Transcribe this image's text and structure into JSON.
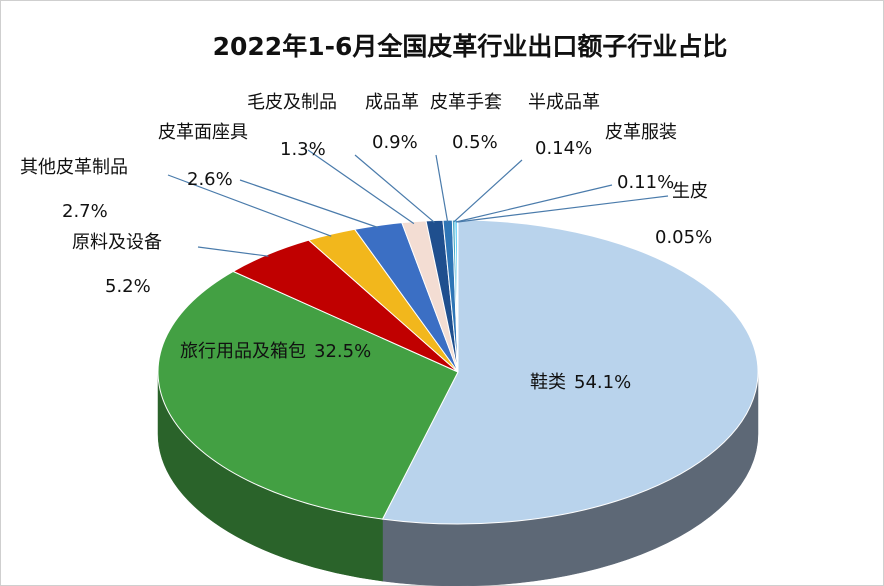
{
  "chart_data": {
    "type": "pie",
    "title": "2022年1-6月全国皮革行业出口额子行业占比",
    "categories": [
      "鞋类",
      "旅行用品及箱包",
      "原料及设备",
      "其他皮革制品",
      "皮革面座具",
      "毛皮及制品",
      "成品革",
      "皮革手套",
      "半成品革",
      "皮革服装",
      "生皮"
    ],
    "values": [
      54.1,
      32.5,
      5.2,
      2.7,
      2.6,
      1.3,
      0.9,
      0.5,
      0.14,
      0.11,
      0.05
    ],
    "value_labels": [
      "54.1%",
      "32.5%",
      "5.2%",
      "2.7%",
      "2.6%",
      "1.3%",
      "0.9%",
      "0.5%",
      "0.14%",
      "0.11%",
      "0.05%"
    ],
    "colors": [
      "#b9d3ec",
      "#43a043",
      "#c00000",
      "#f2b71c",
      "#3b6fc4",
      "#f3ddd3",
      "#1f4f8e",
      "#2e75b6",
      "#4bacc6",
      "#00b0f0",
      "#7fd3e3"
    ]
  }
}
